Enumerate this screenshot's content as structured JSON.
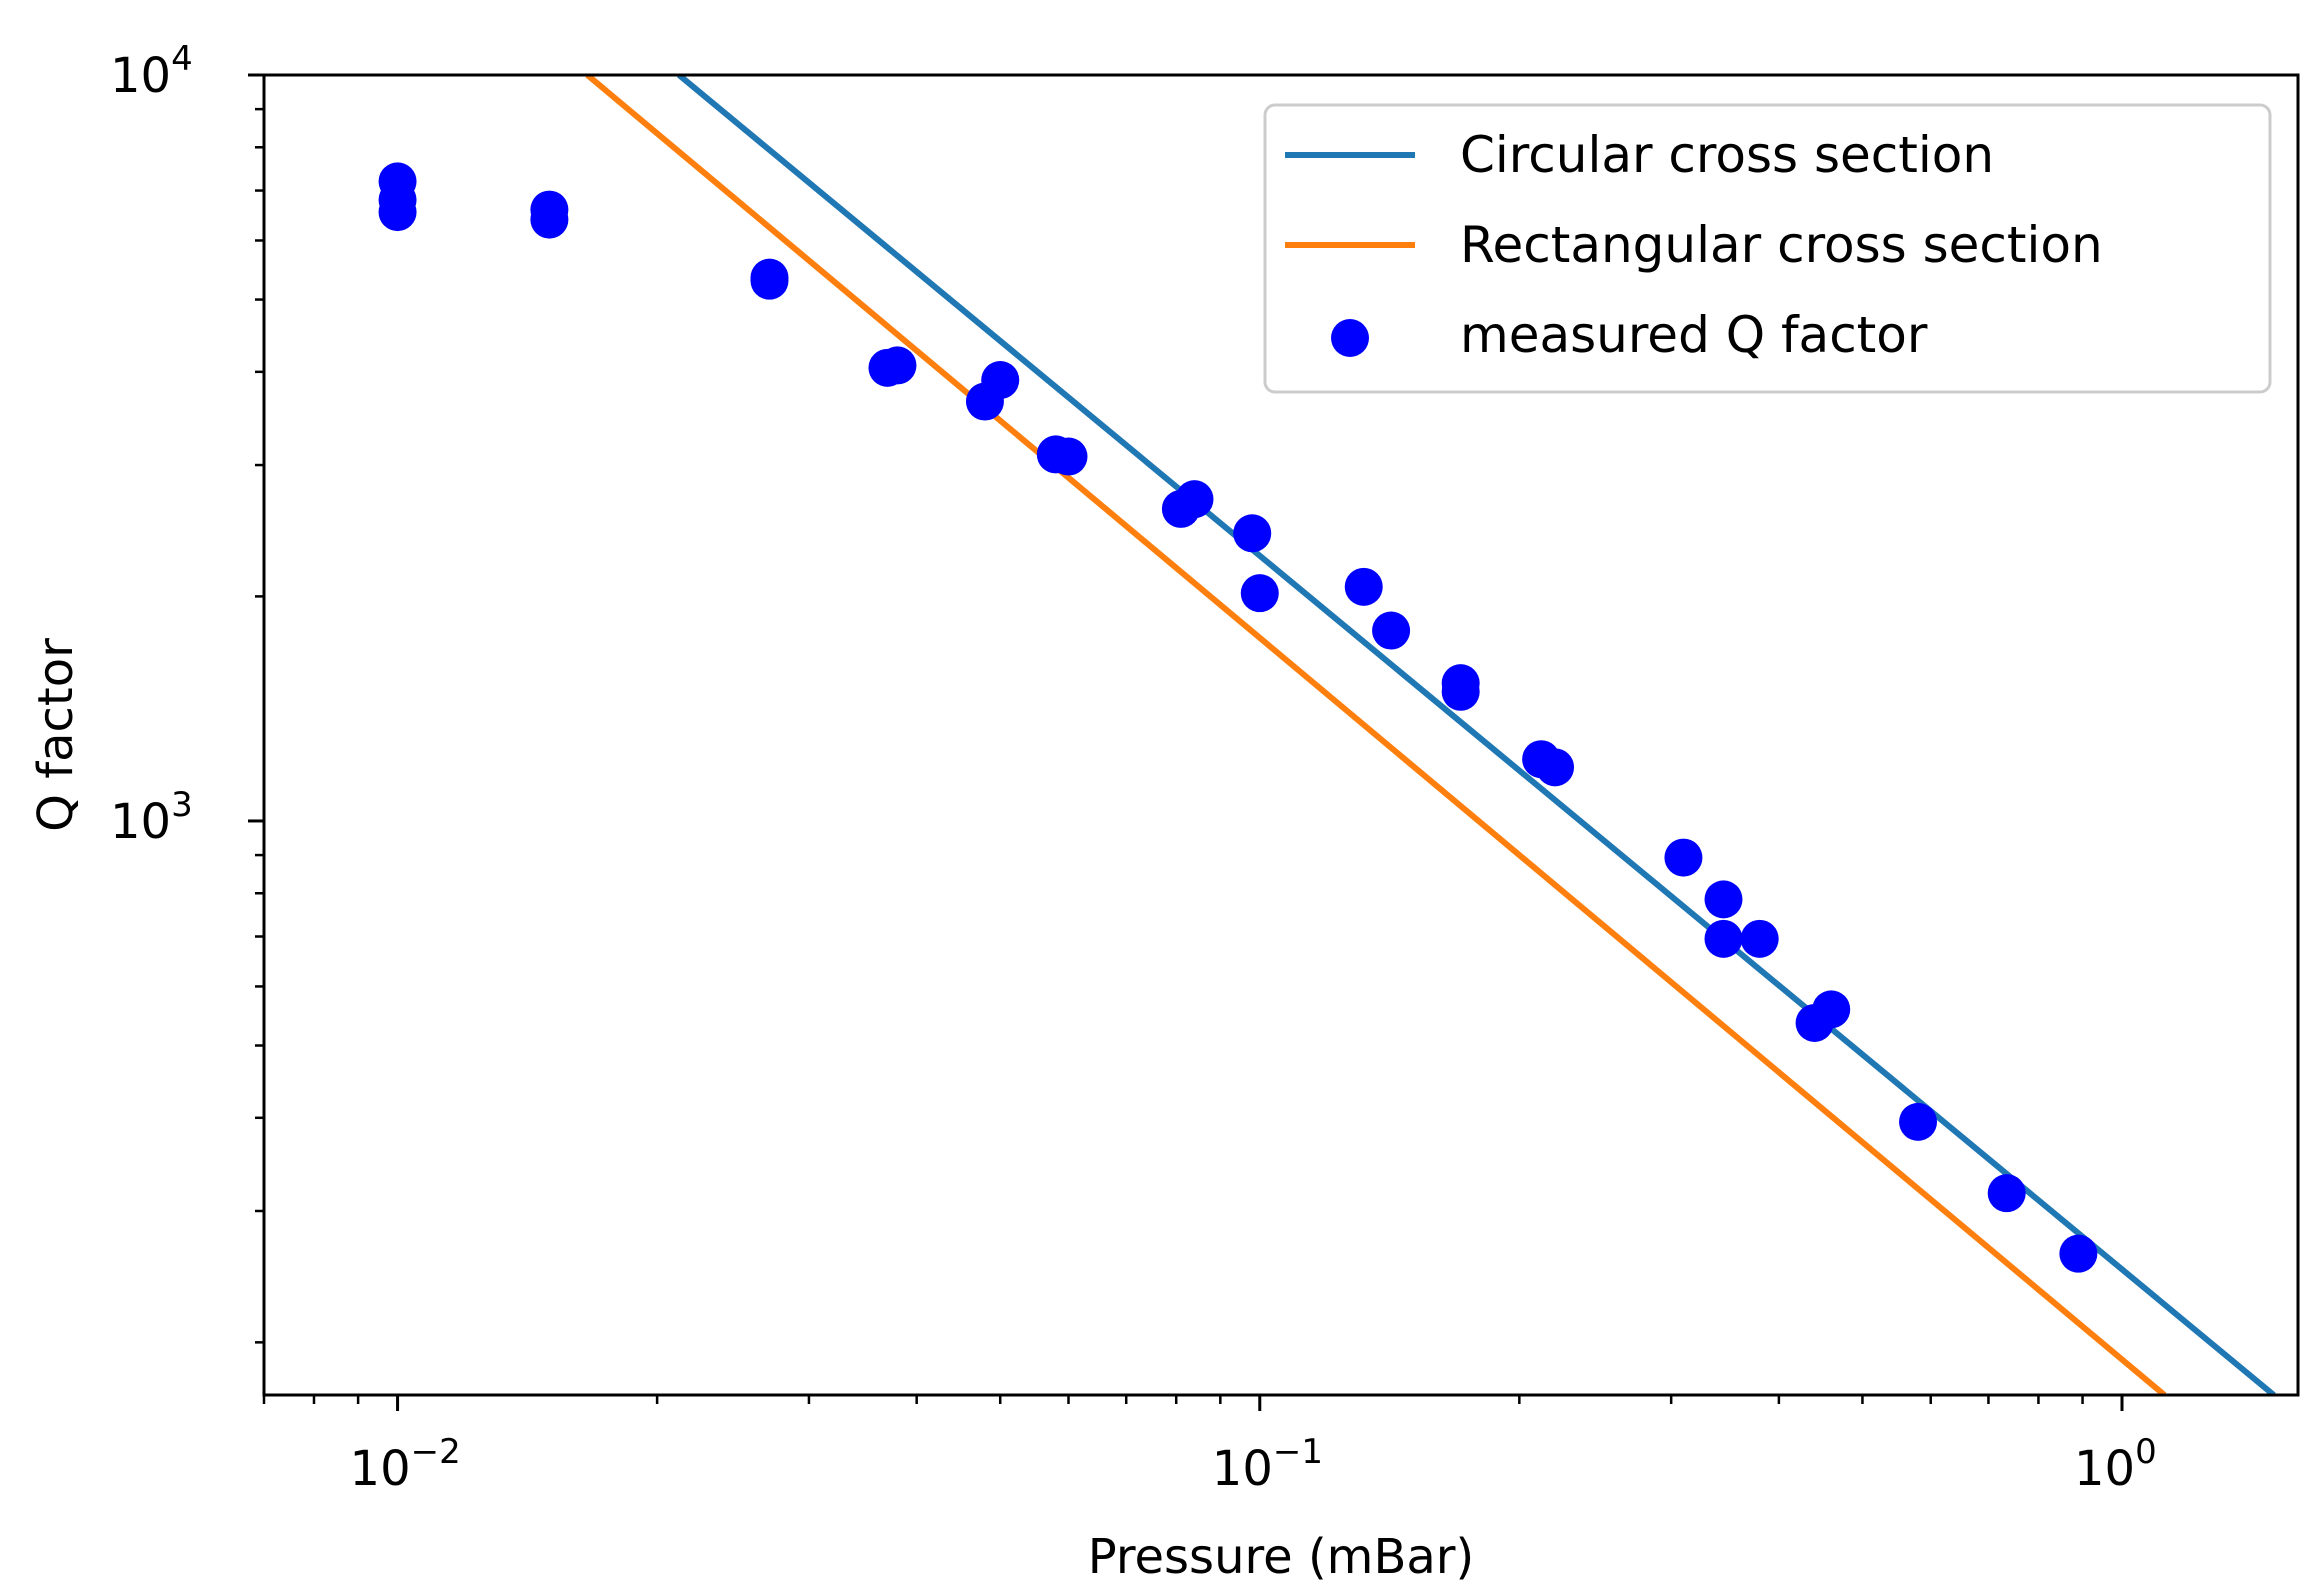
{
  "chart_data": {
    "type": "scatter",
    "title": "",
    "xlabel": "Pressure (mBar)",
    "ylabel": "Q factor",
    "xscale": "log",
    "yscale": "log",
    "xlim": [
      0.007,
      1.6
    ],
    "ylim": [
      170,
      10000
    ],
    "x_ticks": [
      {
        "value": 0.01,
        "base": "10",
        "exp": "−2"
      },
      {
        "value": 0.1,
        "base": "10",
        "exp": "−1"
      },
      {
        "value": 1,
        "base": "10",
        "exp": "0"
      }
    ],
    "y_ticks": [
      {
        "value": 1000,
        "base": "10",
        "exp": "3"
      },
      {
        "value": 10000,
        "base": "10",
        "exp": "4"
      }
    ],
    "legend_position": "top-right",
    "series": [
      {
        "name": "Circular cross section",
        "kind": "line",
        "color": "#1f77b4",
        "x": [
          0.0212,
          1.5
        ],
        "y": [
          10000,
          170
        ]
      },
      {
        "name": "Rectangular cross section",
        "kind": "line",
        "color": "#ff7f0e",
        "x": [
          0.0166,
          1.12
        ],
        "y": [
          10000,
          170
        ]
      },
      {
        "name": "measured Q factor",
        "kind": "scatter",
        "color": "#0000ff",
        "x": [
          0.01,
          0.01,
          0.01,
          0.015,
          0.015,
          0.027,
          0.027,
          0.037,
          0.038,
          0.048,
          0.05,
          0.058,
          0.06,
          0.081,
          0.084,
          0.098,
          0.1,
          0.132,
          0.142,
          0.171,
          0.171,
          0.212,
          0.22,
          0.31,
          0.345,
          0.345,
          0.38,
          0.44,
          0.46,
          0.58,
          0.735,
          0.89
        ],
        "y": [
          7200,
          6800,
          6550,
          6600,
          6400,
          5350,
          5300,
          4050,
          4080,
          3650,
          3900,
          3100,
          3080,
          2620,
          2700,
          2430,
          2020,
          2060,
          1800,
          1530,
          1490,
          1210,
          1180,
          893,
          785,
          695,
          695,
          536,
          559,
          395,
          317,
          263
        ]
      }
    ]
  }
}
